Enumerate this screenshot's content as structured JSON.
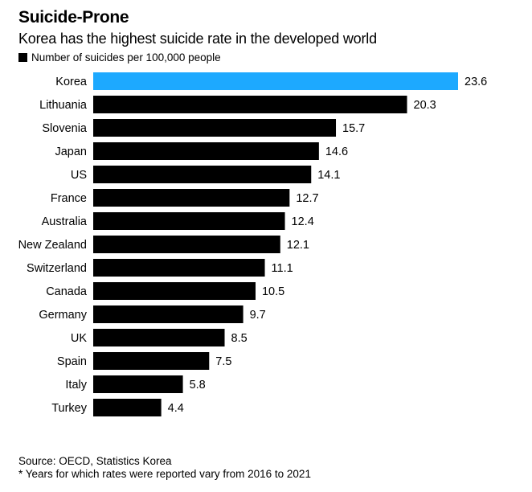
{
  "header": {
    "title": "Suicide-Prone",
    "subtitle": "Korea has the highest suicide rate in the developed world",
    "legend_label": "Number of suicides per 100,000 people"
  },
  "footer": {
    "source": "Source: OECD, Statistics Korea",
    "note": "* Years for which rates were reported vary from 2016 to 2021"
  },
  "colors": {
    "highlight": "#1DA9FF",
    "default": "#000000"
  },
  "chart_data": {
    "type": "bar",
    "orientation": "horizontal",
    "title": "Suicide-Prone",
    "subtitle": "Korea has the highest suicide rate in the developed world",
    "xlabel": "",
    "ylabel": "",
    "legend": [
      {
        "name": "Number of suicides per 100,000 people",
        "placement": "top-left"
      }
    ],
    "grid": false,
    "xlim": [
      0,
      23.6
    ],
    "highlight": "Korea",
    "categories": [
      "Korea",
      "Lithuania",
      "Slovenia",
      "Japan",
      "US",
      "France",
      "Australia",
      "New Zealand",
      "Switzerland",
      "Canada",
      "Germany",
      "UK",
      "Spain",
      "Italy",
      "Turkey"
    ],
    "values": [
      23.6,
      20.3,
      15.7,
      14.6,
      14.1,
      12.7,
      12.4,
      12.1,
      11.1,
      10.5,
      9.7,
      8.5,
      7.5,
      5.8,
      4.4
    ],
    "value_labels": [
      "23.6",
      "20.3",
      "15.7",
      "14.6",
      "14.1",
      "12.7",
      "12.4",
      "12.1",
      "11.1",
      "10.5",
      "9.7",
      "8.5",
      "7.5",
      "5.8",
      "4.4"
    ]
  }
}
